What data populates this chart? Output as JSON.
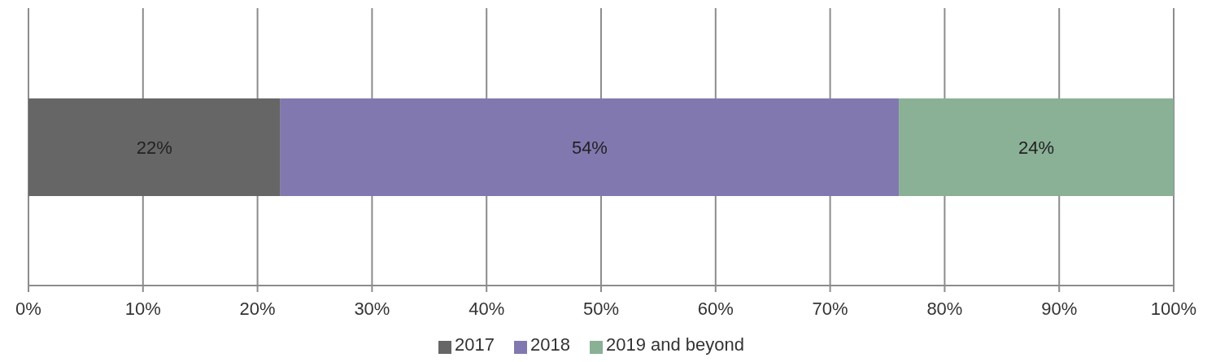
{
  "chart_data": {
    "type": "bar",
    "orientation": "horizontal",
    "stacked": true,
    "categories": [
      null
    ],
    "series": [
      {
        "name": "2017",
        "color": "#666666",
        "values": [
          22
        ],
        "value_labels": [
          "22%"
        ]
      },
      {
        "name": "2018",
        "color": "#8278b0",
        "values": [
          54
        ],
        "value_labels": [
          "54%"
        ]
      },
      {
        "name": "2019 and beyond",
        "color": "#8ab096",
        "values": [
          24
        ],
        "value_labels": [
          "24%"
        ]
      }
    ],
    "xlim": [
      0,
      100
    ],
    "xticks": [
      {
        "value": 0,
        "label": "0%"
      },
      {
        "value": 10,
        "label": "10%"
      },
      {
        "value": 20,
        "label": "20%"
      },
      {
        "value": 30,
        "label": "30%"
      },
      {
        "value": 40,
        "label": "40%"
      },
      {
        "value": 50,
        "label": "50%"
      },
      {
        "value": 60,
        "label": "60%"
      },
      {
        "value": 70,
        "label": "70%"
      },
      {
        "value": 80,
        "label": "80%"
      },
      {
        "value": 90,
        "label": "90%"
      },
      {
        "value": 100,
        "label": "100%"
      }
    ],
    "grid": "x",
    "legend": "bottom"
  }
}
